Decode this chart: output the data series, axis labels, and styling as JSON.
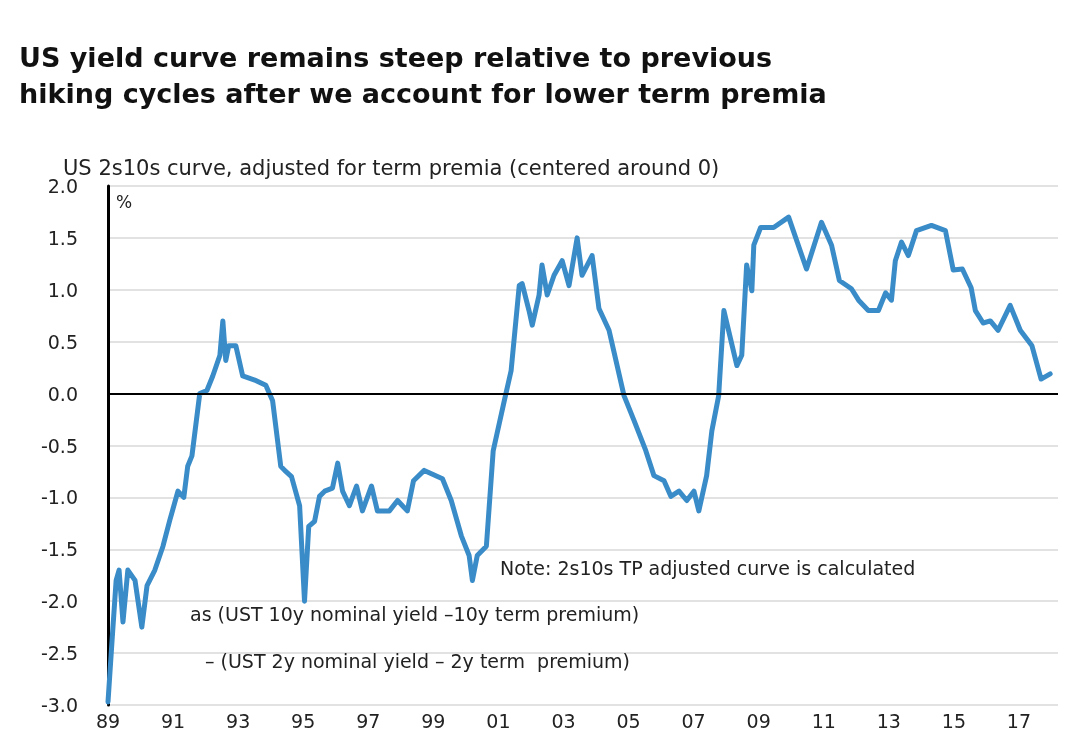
{
  "chart_data": {
    "type": "line",
    "title": "US yield curve remains steep relative to previous hiking cycles after we account for lower term premia",
    "subtitle": "US 2s10s curve, adjusted for term premia (centered around 0)",
    "ylabel": "%",
    "annotations": [
      "Note: 2s10s TP adjusted curve is calculated",
      "as (UST 10y nominal yield –10y term premium)",
      "– (UST 2y nominal yield – 2y term  premium)"
    ],
    "series": [
      {
        "color": "#3a8cc8",
        "x": [
          1989.0,
          1989.12,
          1989.25,
          1989.34,
          1989.46,
          1989.61,
          1989.83,
          1990.04,
          1990.2,
          1990.44,
          1990.69,
          1990.9,
          1991.15,
          1991.33,
          1991.45,
          1991.58,
          1991.82,
          1992.04,
          1992.22,
          1992.44,
          1992.53,
          1992.62,
          1992.71,
          1992.93,
          1993.14,
          1993.51,
          1993.85,
          1994.06,
          1994.31,
          1994.43,
          1994.64,
          1994.89,
          1995.04,
          1995.17,
          1995.35,
          1995.5,
          1995.66,
          1995.9,
          1996.06,
          1996.21,
          1996.42,
          1996.64,
          1996.82,
          1997.1,
          1997.28,
          1997.65,
          1997.9,
          1998.2,
          1998.39,
          1998.72,
          1999.28,
          1999.55,
          1999.86,
          2000.1,
          2000.2,
          2000.35,
          2000.63,
          2000.84,
          2001.18,
          2001.39,
          2001.64,
          2001.73,
          2001.94,
          2002.04,
          2002.25,
          2002.34,
          2002.5,
          2002.71,
          2002.96,
          2003.17,
          2003.42,
          2003.57,
          2003.88,
          2004.09,
          2004.4,
          2004.86,
          2005.17,
          2005.53,
          2005.78,
          2006.09,
          2006.3,
          2006.55,
          2006.79,
          2007.01,
          2007.16,
          2007.4,
          2007.56,
          2007.77,
          2007.93,
          2008.33,
          2008.48,
          2008.63,
          2008.79,
          2008.85,
          2009.06,
          2009.46,
          2009.92,
          2010.47,
          2010.93,
          2011.24,
          2011.48,
          2011.85,
          2012.07,
          2012.37,
          2012.68,
          2012.9,
          2013.08,
          2013.2,
          2013.39,
          2013.6,
          2013.85,
          2014.31,
          2014.74,
          2014.98,
          2015.26,
          2015.53,
          2015.66,
          2015.9,
          2016.12,
          2016.36,
          2016.73,
          2017.04,
          2017.4,
          2017.68,
          2017.96
        ],
        "values": [
          -2.97,
          -2.4,
          -1.8,
          -1.7,
          -2.2,
          -1.7,
          -1.8,
          -2.25,
          -1.85,
          -1.7,
          -1.47,
          -1.22,
          -0.94,
          -1.0,
          -0.7,
          -0.6,
          0.0,
          0.03,
          0.17,
          0.37,
          0.7,
          0.32,
          0.46,
          0.46,
          0.17,
          0.13,
          0.08,
          -0.07,
          -0.7,
          -0.74,
          -0.8,
          -1.08,
          -2.0,
          -1.28,
          -1.23,
          -0.99,
          -0.94,
          -0.91,
          -0.67,
          -0.94,
          -1.08,
          -0.89,
          -1.13,
          -0.89,
          -1.13,
          -1.13,
          -1.03,
          -1.13,
          -0.84,
          -0.74,
          -0.82,
          -1.03,
          -1.37,
          -1.56,
          -1.8,
          -1.56,
          -1.47,
          -0.55,
          -0.07,
          0.22,
          1.04,
          1.06,
          0.8,
          0.66,
          0.95,
          1.24,
          0.95,
          1.14,
          1.28,
          1.04,
          1.5,
          1.14,
          1.33,
          0.82,
          0.61,
          -0.02,
          -0.26,
          -0.55,
          -0.79,
          -0.84,
          -0.99,
          -0.94,
          -1.03,
          -0.94,
          -1.13,
          -0.79,
          -0.36,
          -0.02,
          0.8,
          0.27,
          0.37,
          1.24,
          0.99,
          1.43,
          1.6,
          1.6,
          1.7,
          1.2,
          1.65,
          1.43,
          1.09,
          1.01,
          0.9,
          0.8,
          0.8,
          0.97,
          0.9,
          1.28,
          1.46,
          1.33,
          1.57,
          1.62,
          1.57,
          1.19,
          1.2,
          1.02,
          0.8,
          0.68,
          0.7,
          0.61,
          0.85,
          0.61,
          0.46,
          0.14,
          0.19
        ]
      }
    ],
    "xlim": [
      1989,
      2018.2
    ],
    "xticks": [
      {
        "value": 1989,
        "label": "89"
      },
      {
        "value": 1991,
        "label": "91"
      },
      {
        "value": 1993,
        "label": "93"
      },
      {
        "value": 1995,
        "label": "95"
      },
      {
        "value": 1997,
        "label": "97"
      },
      {
        "value": 1999,
        "label": "99"
      },
      {
        "value": 2001,
        "label": "01"
      },
      {
        "value": 2003,
        "label": "03"
      },
      {
        "value": 2005,
        "label": "05"
      },
      {
        "value": 2007,
        "label": "07"
      },
      {
        "value": 2009,
        "label": "09"
      },
      {
        "value": 2011,
        "label": "11"
      },
      {
        "value": 2013,
        "label": "13"
      },
      {
        "value": 2015,
        "label": "15"
      },
      {
        "value": 2017,
        "label": "17"
      }
    ],
    "ylim": [
      -3,
      2
    ],
    "yticks": [
      {
        "value": -3,
        "label": "-3.0"
      },
      {
        "value": -2.5,
        "label": "-2.5"
      },
      {
        "value": -2,
        "label": "-2.0"
      },
      {
        "value": -1.5,
        "label": "-1.5"
      },
      {
        "value": -1,
        "label": "-1.0"
      },
      {
        "value": -0.5,
        "label": "-0.5"
      },
      {
        "value": 0,
        "label": "0.0"
      },
      {
        "value": 0.5,
        "label": "0.5"
      },
      {
        "value": 1,
        "label": "1.0"
      },
      {
        "value": 1.5,
        "label": "1.5"
      },
      {
        "value": 2,
        "label": "2.0"
      }
    ],
    "ref_lines": [
      {
        "axis": "y",
        "value": 0,
        "color": "#000000"
      }
    ],
    "grid": "y",
    "marker": "none",
    "line_style": "solid"
  }
}
